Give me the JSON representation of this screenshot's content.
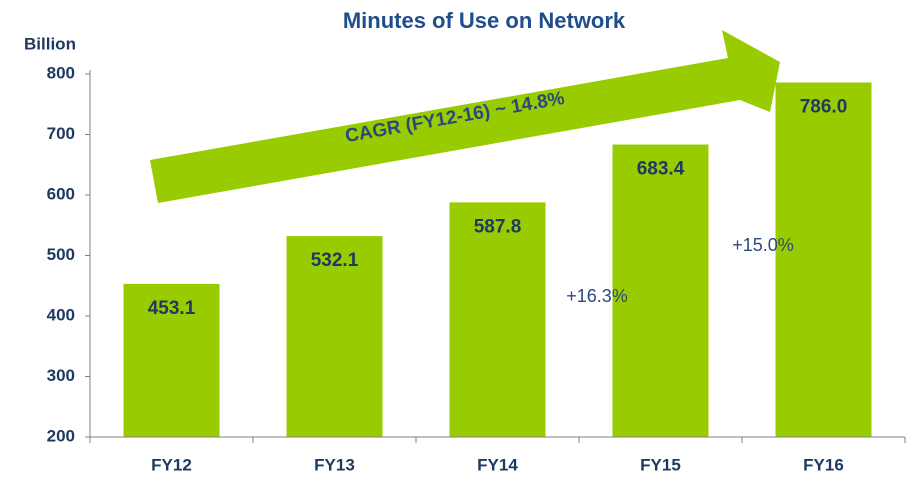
{
  "chart_data": {
    "type": "bar",
    "title": "Minutes of Use on Network",
    "y_axis_label": "Billion",
    "categories": [
      "FY12",
      "FY13",
      "FY14",
      "FY15",
      "FY16"
    ],
    "values": [
      453.1,
      532.1,
      587.8,
      683.4,
      786
    ],
    "value_labels": [
      "453.1",
      "532.1",
      "587.8",
      "683.4",
      "786.0"
    ],
    "color": "#99cc00",
    "ylim": [
      200,
      800
    ],
    "yticks": [
      200,
      300,
      400,
      500,
      600,
      700,
      800
    ],
    "grid": false,
    "annotations": [
      "CAGR (FY12-16) ~ 14.8%",
      "+16.3%",
      "+15.0%"
    ]
  }
}
